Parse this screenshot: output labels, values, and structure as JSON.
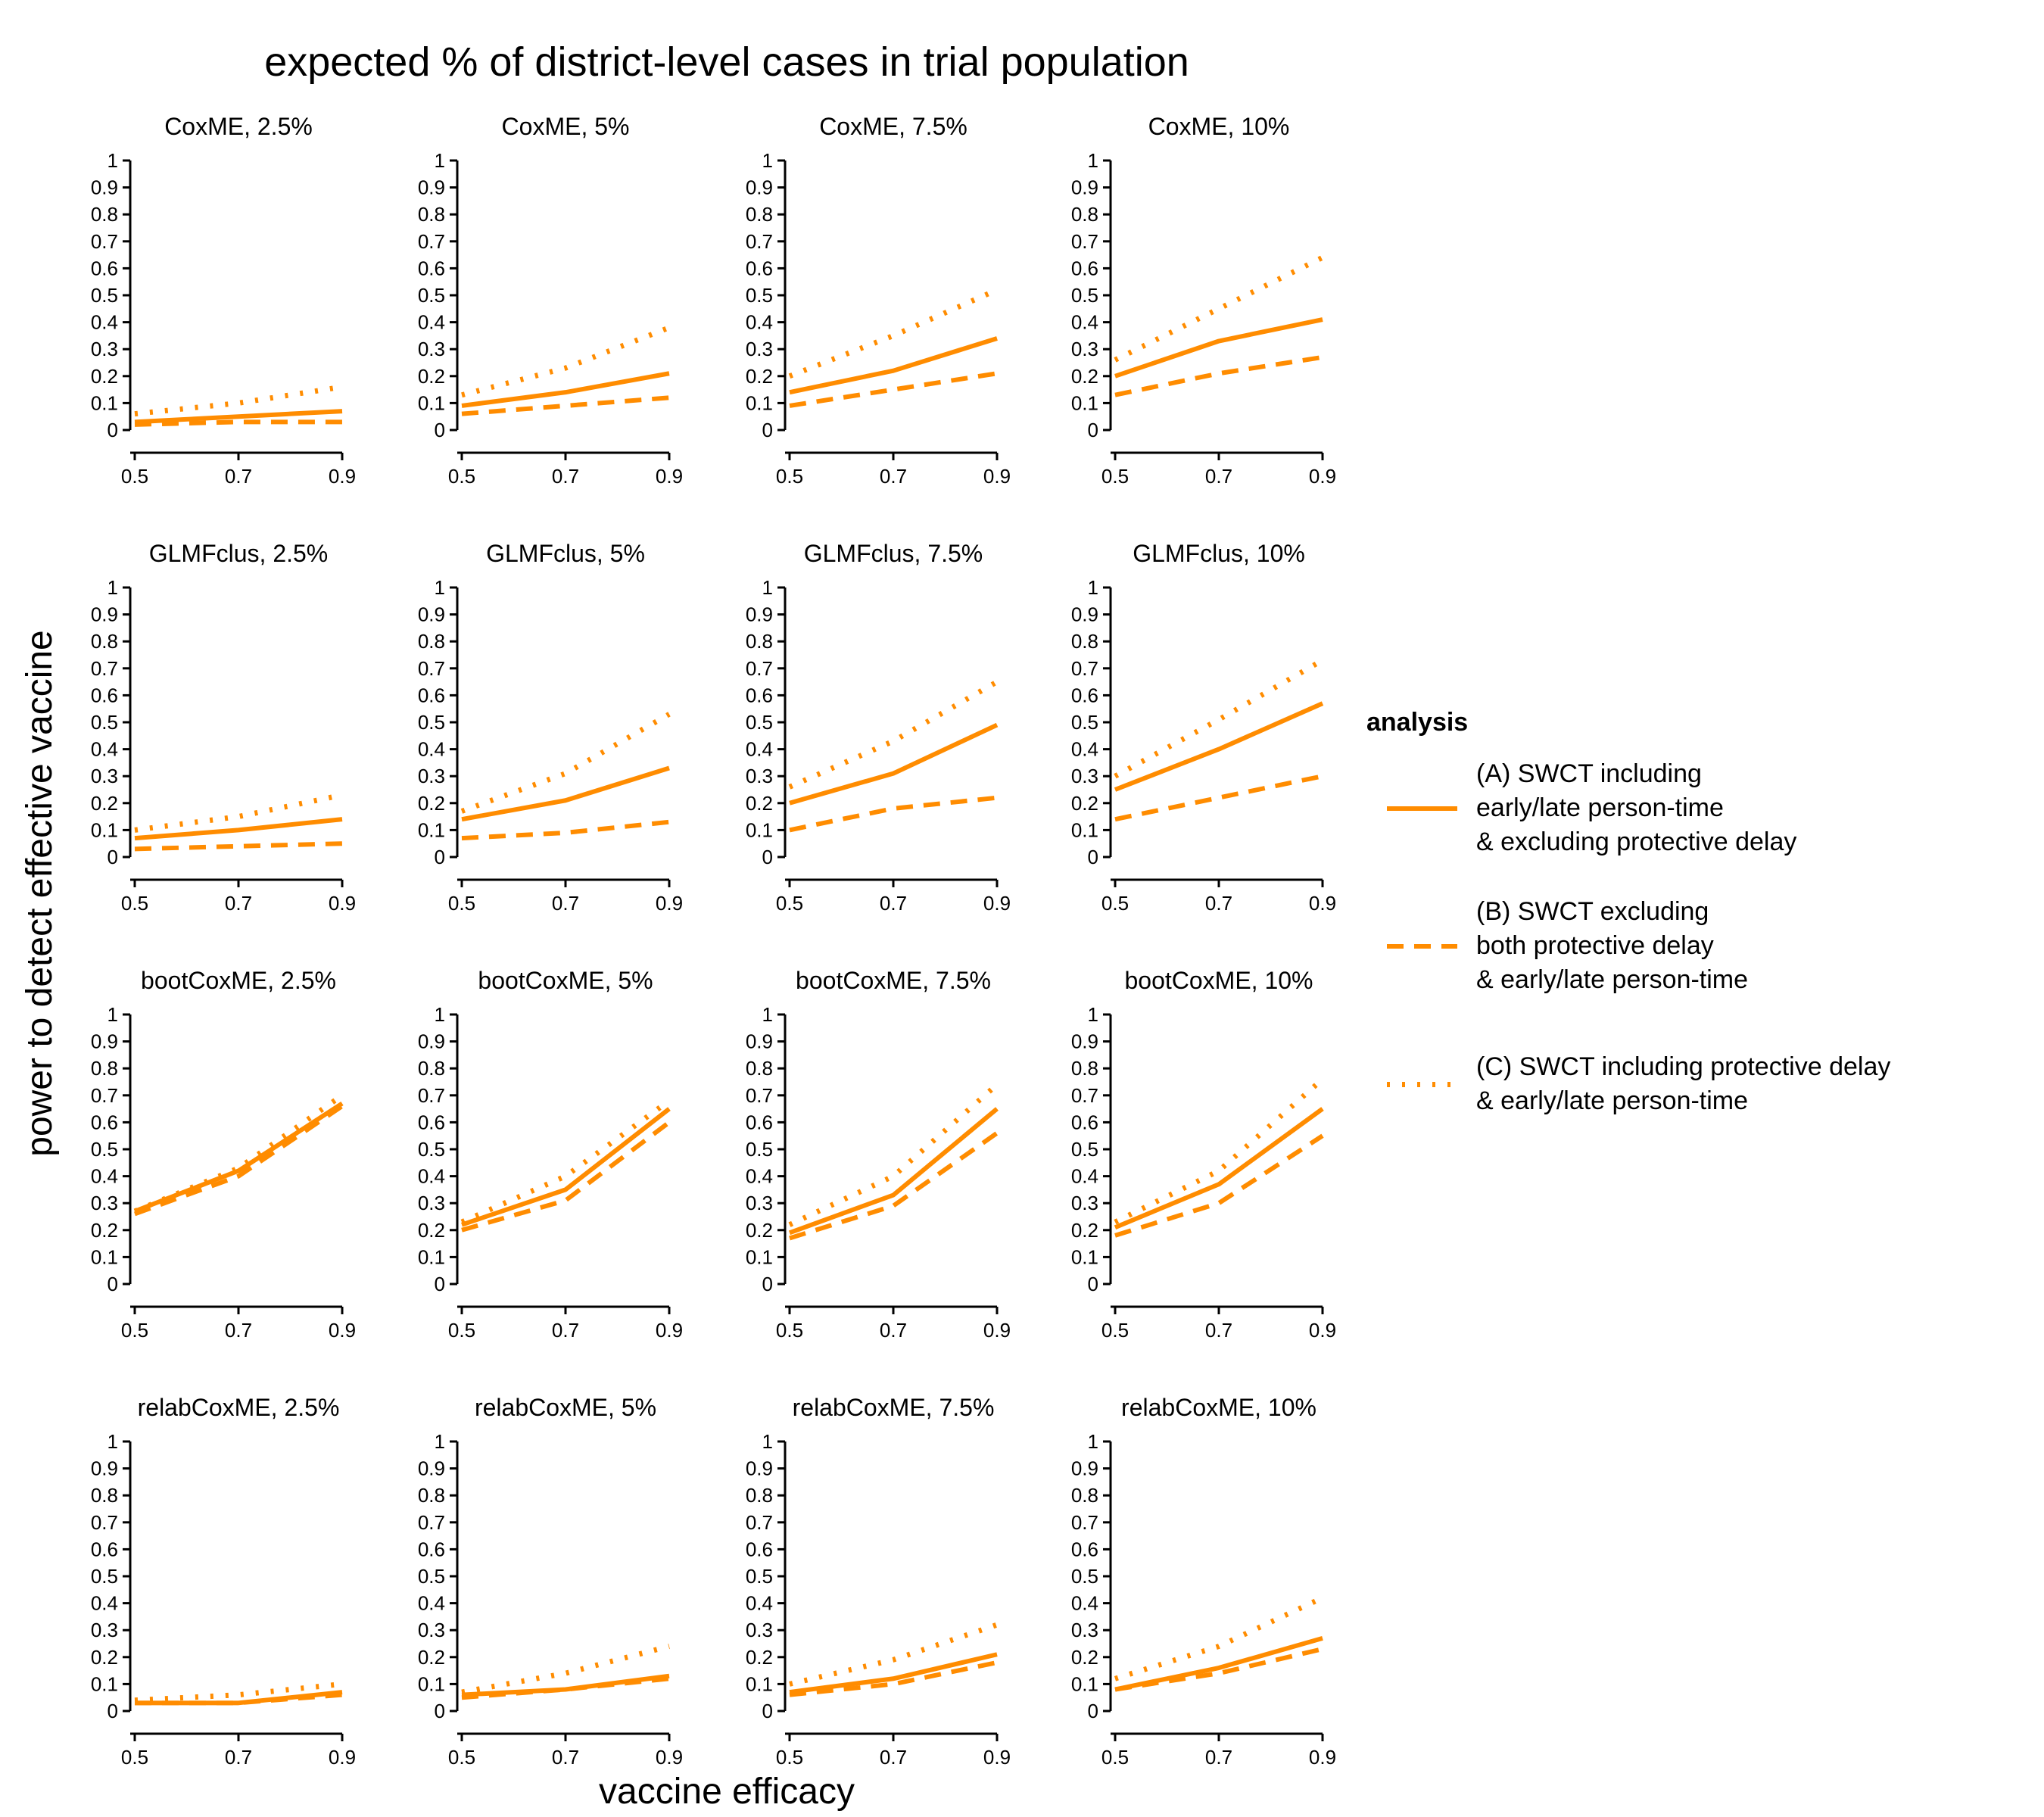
{
  "title": "expected % of district-level cases in trial population",
  "xlabel": "vaccine efficacy",
  "ylabel": "power to detect effective vaccine",
  "colors": {
    "line": "#ff8c00"
  },
  "legend": {
    "title": "analysis",
    "entries": [
      {
        "style": "solid",
        "lines": [
          "(A) SWCT including",
          "early/late person-time",
          "& excluding protective delay"
        ]
      },
      {
        "style": "dashed",
        "lines": [
          "(B) SWCT excluding",
          "both protective delay",
          "& early/late person-time"
        ]
      },
      {
        "style": "dotted",
        "lines": [
          "(C) SWCT including protective delay",
          "& early/late person-time"
        ]
      }
    ]
  },
  "chart_data": {
    "type": "line",
    "layout": "facet grid 4 rows x 4 columns",
    "x": [
      0.5,
      0.7,
      0.9
    ],
    "xticks": [
      "0.5",
      "0.7",
      "0.9"
    ],
    "xlim": [
      0.5,
      0.9
    ],
    "yticks": [
      "0",
      "0.1",
      "0.2",
      "0.3",
      "0.4",
      "0.5",
      "0.6",
      "0.7",
      "0.8",
      "0.9",
      "1"
    ],
    "ylim": [
      0,
      1
    ],
    "grid": false,
    "legend_position": "right",
    "panels": [
      {
        "title": "CoxME, 2.5%",
        "A": [
          0.03,
          0.05,
          0.07
        ],
        "B": [
          0.02,
          0.03,
          0.03
        ],
        "C": [
          0.06,
          0.1,
          0.16
        ]
      },
      {
        "title": "CoxME, 5%",
        "A": [
          0.09,
          0.14,
          0.21
        ],
        "B": [
          0.06,
          0.09,
          0.12
        ],
        "C": [
          0.13,
          0.23,
          0.38
        ]
      },
      {
        "title": "CoxME, 7.5%",
        "A": [
          0.14,
          0.22,
          0.34
        ],
        "B": [
          0.09,
          0.15,
          0.21
        ],
        "C": [
          0.2,
          0.35,
          0.52
        ]
      },
      {
        "title": "CoxME, 10%",
        "A": [
          0.2,
          0.33,
          0.41
        ],
        "B": [
          0.13,
          0.21,
          0.27
        ],
        "C": [
          0.26,
          0.45,
          0.64
        ]
      },
      {
        "title": "GLMFclus, 2.5%",
        "A": [
          0.07,
          0.1,
          0.14
        ],
        "B": [
          0.03,
          0.04,
          0.05
        ],
        "C": [
          0.1,
          0.15,
          0.23
        ]
      },
      {
        "title": "GLMFclus, 5%",
        "A": [
          0.14,
          0.21,
          0.33
        ],
        "B": [
          0.07,
          0.09,
          0.13
        ],
        "C": [
          0.17,
          0.31,
          0.53
        ]
      },
      {
        "title": "GLMFclus, 7.5%",
        "A": [
          0.2,
          0.31,
          0.49
        ],
        "B": [
          0.1,
          0.18,
          0.22
        ],
        "C": [
          0.26,
          0.43,
          0.65
        ]
      },
      {
        "title": "GLMFclus, 10%",
        "A": [
          0.25,
          0.4,
          0.57
        ],
        "B": [
          0.14,
          0.22,
          0.3
        ],
        "C": [
          0.3,
          0.51,
          0.73
        ]
      },
      {
        "title": "bootCoxME, 2.5%",
        "A": [
          0.27,
          0.42,
          0.67
        ],
        "B": [
          0.26,
          0.4,
          0.66
        ],
        "C": [
          0.27,
          0.43,
          0.7
        ]
      },
      {
        "title": "bootCoxME, 5%",
        "A": [
          0.22,
          0.35,
          0.65
        ],
        "B": [
          0.2,
          0.31,
          0.6
        ],
        "C": [
          0.23,
          0.4,
          0.68
        ]
      },
      {
        "title": "bootCoxME, 7.5%",
        "A": [
          0.19,
          0.33,
          0.65
        ],
        "B": [
          0.17,
          0.29,
          0.56
        ],
        "C": [
          0.22,
          0.4,
          0.74
        ]
      },
      {
        "title": "bootCoxME, 10%",
        "A": [
          0.21,
          0.37,
          0.65
        ],
        "B": [
          0.18,
          0.3,
          0.55
        ],
        "C": [
          0.23,
          0.42,
          0.76
        ]
      },
      {
        "title": "relabCoxME, 2.5%",
        "A": [
          0.03,
          0.03,
          0.07
        ],
        "B": [
          0.03,
          0.03,
          0.06
        ],
        "C": [
          0.04,
          0.06,
          0.1
        ]
      },
      {
        "title": "relabCoxME, 5%",
        "A": [
          0.06,
          0.08,
          0.13
        ],
        "B": [
          0.05,
          0.08,
          0.12
        ],
        "C": [
          0.07,
          0.14,
          0.24
        ]
      },
      {
        "title": "relabCoxME, 7.5%",
        "A": [
          0.07,
          0.12,
          0.21
        ],
        "B": [
          0.06,
          0.1,
          0.18
        ],
        "C": [
          0.1,
          0.19,
          0.32
        ]
      },
      {
        "title": "relabCoxME, 10%",
        "A": [
          0.08,
          0.16,
          0.27
        ],
        "B": [
          0.08,
          0.14,
          0.23
        ],
        "C": [
          0.12,
          0.24,
          0.42
        ]
      }
    ]
  }
}
